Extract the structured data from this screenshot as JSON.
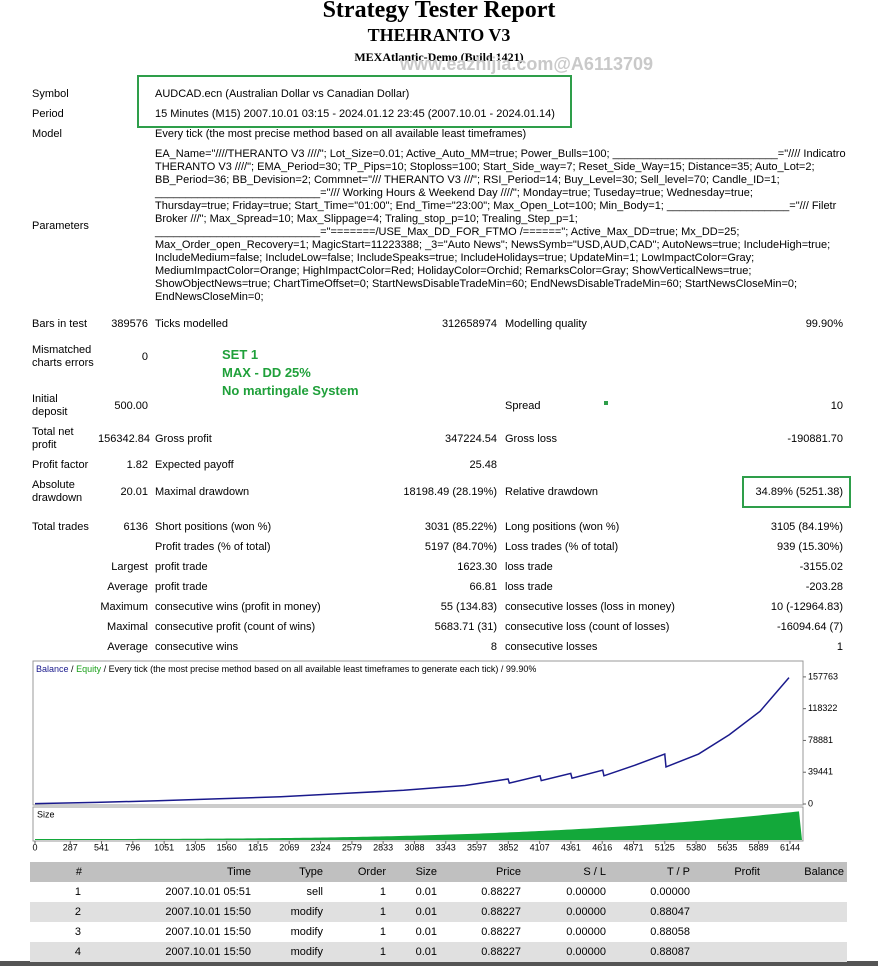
{
  "header": {
    "title": "Strategy Tester Report",
    "subtitle": "THEHRANTO V3",
    "server": "MEXAtlantic-Demo (Build 1421)",
    "watermark": "www.eazhijia.com@A6113709"
  },
  "settings": [
    {
      "label": "Symbol",
      "value": "AUDCAD.ecn (Australian Dollar vs Canadian Dollar)"
    },
    {
      "label": "Period",
      "value": "15 Minutes (M15) 2007.10.01 03:15 - 2024.01.12 23:45 (2007.10.01 - 2024.01.14)"
    },
    {
      "label": "Model",
      "value": "Every tick (the most precise method based on all available least timeframes)"
    }
  ],
  "parameters": {
    "label": "Parameters",
    "lines": [
      "EA_Name=\"////THERANTO V3 ////\"; Lot_Size=0.01; Active_Auto_MM=true; Power_Bulls=100; ___________________________=\"//// Indicatro",
      "THERANTO V3 ////\"; EMA_Period=30; TP_Pips=10; Stoploss=100; Start_Side_way=7; Reset_Side_Way=15; Distance=35; Auto_Lot=2;",
      "BB_Period=36; BB_Devision=2; Commnet=\"/// THERANTO V3 ///\"; RSI_Period=14; Buy_Level=30; Sell_level=70; Candle_ID=1;",
      "___________________________=\"/// Working Hours & Weekend Day ////\"; Monday=true; Tuseday=true; Wednesday=true;",
      "Thursday=true; Friday=true; Start_Time=\"01:00\"; End_Time=\"23:00\"; Max_Open_Lot=100; Min_Body=1; ____________________=\"/// Filetr",
      "Broker ///\"; Max_Spread=10; Max_Slippage=4; Traling_stop_p=10; Trealing_Step_p=1;",
      "___________________________=\"=======/USE_Max_DD_FOR_FTMO /======\"; Active_Max_DD=true; Mx_DD=25;",
      "Max_Order_open_Recovery=1; MagicStart=11223388; _3=\"Auto News\"; NewsSymb=\"USD,AUD,CAD\"; AutoNews=true; IncludeHigh=true;",
      "IncludeMedium=false; IncludeLow=false; IncludeSpeaks=true; IncludeHolidays=true; UpdateMin=1; LowImpactColor=Gray;",
      "MediumImpactColor=Orange; HighImpactColor=Red; HolidayColor=Orchid; RemarksColor=Gray; ShowVerticalNews=true;",
      "ShowObjectNews=true; ChartTimeOffset=0; StartNewsDisableTradeMin=60; EndNewsDisableTradeMin=60; StartNewsCloseMin=0;",
      "EndNewsCloseMin=0;"
    ]
  },
  "stats": [
    [
      "Bars in test",
      "389576",
      "Ticks modelled",
      "312658974",
      "Modelling quality",
      "99.90%"
    ],
    [
      "Mismatched charts errors",
      "0",
      null,
      null,
      null,
      null
    ],
    [
      "Initial deposit",
      "500.00",
      null,
      null,
      "Spread",
      "10"
    ],
    [
      "Total net profit",
      "156342.84",
      "Gross profit",
      "347224.54",
      "Gross loss",
      "-190881.70"
    ],
    [
      "Profit factor",
      "1.82",
      "Expected payoff",
      "25.48",
      null,
      null
    ],
    [
      "Absolute drawdown",
      "20.01",
      "Maximal drawdown",
      "18198.49 (28.19%)",
      "Relative drawdown",
      "34.89% (5251.38)"
    ],
    [
      "Total trades",
      "6136",
      "Short positions (won %)",
      "3031 (85.22%)",
      "Long positions (won %)",
      "3105 (84.19%)"
    ],
    [
      null,
      null,
      "Profit trades (% of total)",
      "5197 (84.70%)",
      "Loss trades (% of total)",
      "939 (15.30%)"
    ],
    [
      "Largest",
      null,
      "profit trade",
      "1623.30",
      "loss trade",
      "-3155.02"
    ],
    [
      "Average",
      null,
      "profit trade",
      "66.81",
      "loss trade",
      "-203.28"
    ],
    [
      "Maximum",
      null,
      "consecutive wins (profit in money)",
      "55 (134.83)",
      "consecutive losses (loss in money)",
      "10 (-12964.83)"
    ],
    [
      "Maximal",
      null,
      "consecutive profit (count of wins)",
      "5683.71 (31)",
      "consecutive loss (count of losses)",
      "-16094.64 (7)"
    ],
    [
      "Average",
      null,
      "consecutive wins",
      "8",
      "consecutive losses",
      "1"
    ]
  ],
  "annotations": [
    "SET 1",
    "MAX - DD 25%",
    "No martingale System"
  ],
  "chart_data": {
    "type": "line",
    "legend_separator": "/",
    "equity_label": "Equity",
    "caption": "Every tick (the most precise method based on all available least timeframes to generate each tick)",
    "quality": "99.90%",
    "size_label": "Size",
    "series": [
      {
        "name": "Balance",
        "color": "#1a1a8c",
        "x": [
          0,
          500,
          1000,
          1500,
          2000,
          2500,
          3000,
          3500,
          3850,
          3860,
          4110,
          4120,
          4360,
          4370,
          4620,
          4630,
          4880,
          5125,
          5135,
          5400,
          5650,
          5900,
          6136
        ],
        "values": [
          500,
          2000,
          4000,
          6500,
          9000,
          13000,
          17000,
          23000,
          31000,
          26000,
          35000,
          29000,
          38000,
          32000,
          42000,
          35000,
          48000,
          62000,
          46000,
          62000,
          86000,
          115000,
          156842
        ]
      }
    ],
    "xlim": [
      0,
      6250
    ],
    "xticks": [
      0,
      287,
      541,
      796,
      1051,
      1305,
      1560,
      1815,
      2069,
      2324,
      2579,
      2833,
      3088,
      3343,
      3597,
      3852,
      4107,
      4361,
      4616,
      4871,
      5125,
      5380,
      5635,
      5889,
      6144
    ],
    "ylim": [
      0,
      175000
    ],
    "yticks": [
      0,
      39441,
      78881,
      118322,
      157763
    ]
  },
  "trades": {
    "columns": [
      "#",
      "Time",
      "Type",
      "Order",
      "Size",
      "Price",
      "S / L",
      "T / P",
      "Profit",
      "Balance"
    ],
    "rows": [
      [
        "1",
        "2007.10.01 05:51",
        "sell",
        "1",
        "0.01",
        "0.88227",
        "0.00000",
        "0.00000"
      ],
      [
        "2",
        "2007.10.01 15:50",
        "modify",
        "1",
        "0.01",
        "0.88227",
        "0.00000",
        "0.88047"
      ],
      [
        "3",
        "2007.10.01 15:50",
        "modify",
        "1",
        "0.01",
        "0.88227",
        "0.00000",
        "0.88058"
      ],
      [
        "4",
        "2007.10.01 15:50",
        "modify",
        "1",
        "0.01",
        "0.88227",
        "0.00000",
        "0.88087"
      ]
    ]
  }
}
